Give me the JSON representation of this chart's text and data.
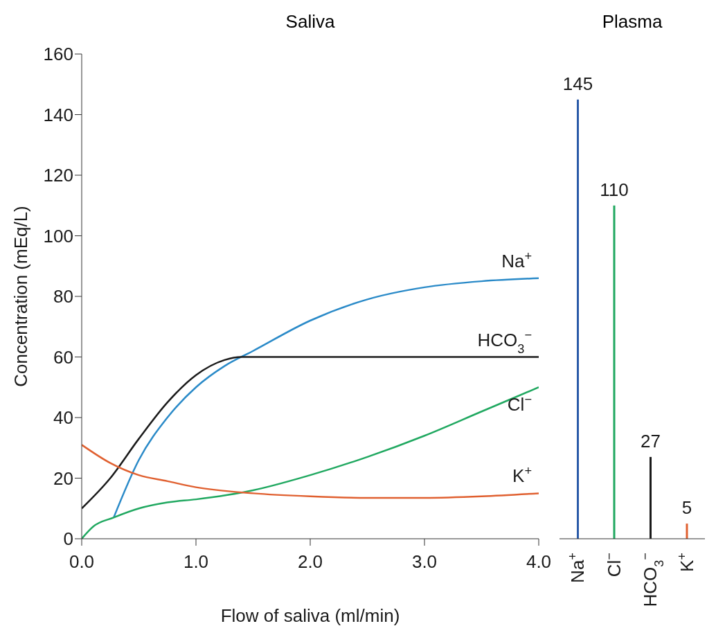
{
  "chart_data": [
    {
      "type": "line",
      "title": "Saliva",
      "xlabel": "Flow of saliva (ml/min)",
      "ylabel": "Concentration (mEq/L)",
      "xlim": [
        0,
        4
      ],
      "xticks": [
        {
          "value": 0,
          "label": "0.0"
        },
        {
          "value": 1,
          "label": "1.0"
        },
        {
          "value": 2,
          "label": "2.0"
        },
        {
          "value": 3,
          "label": "3.0"
        },
        {
          "value": 4,
          "label": "4.0"
        }
      ],
      "ylim": [
        0,
        160
      ],
      "yticks": [
        0,
        20,
        40,
        60,
        80,
        100,
        120,
        140,
        160
      ],
      "series": [
        {
          "name": "Na$^{+}$",
          "color": "#2a8ac8",
          "x": [
            0.28,
            0.5,
            0.75,
            1.0,
            1.25,
            1.5,
            2.0,
            2.5,
            3.0,
            3.5,
            4.0
          ],
          "values": [
            7,
            26,
            40,
            50,
            57,
            62,
            72,
            79,
            83,
            85,
            86
          ]
        },
        {
          "name": "HCO$_{3}$$^{−}$",
          "color": "#1a1a1a",
          "x": [
            0,
            0.25,
            0.5,
            0.75,
            1.0,
            1.25,
            1.4,
            2.0,
            3.0,
            4.0
          ],
          "values": [
            10,
            20,
            33,
            45,
            54,
            59,
            60,
            60,
            60,
            60
          ]
        },
        {
          "name": "Cl$^{−}$",
          "color": "#20a860",
          "x": [
            0,
            0.1,
            0.28,
            0.5,
            0.75,
            1.0,
            1.5,
            2.0,
            2.5,
            3.0,
            3.5,
            4.0
          ],
          "values": [
            0,
            4,
            7,
            10,
            12,
            13,
            16,
            21,
            27,
            34,
            42,
            50
          ]
        },
        {
          "name": "K$^{+}$",
          "color": "#e06030",
          "x": [
            0,
            0.25,
            0.5,
            0.75,
            1.0,
            1.5,
            2.0,
            2.5,
            3.0,
            3.5,
            4.0
          ],
          "values": [
            31,
            25,
            21,
            19,
            17,
            15,
            14,
            13.5,
            13.5,
            14,
            15
          ]
        }
      ]
    },
    {
      "type": "bar",
      "title": "Plasma",
      "categories": [
        "Na$^{+}$",
        "Cl$^{−}$",
        "HCO$_{3}$$^{−}$",
        "K$^{+}$"
      ],
      "values": [
        145,
        110,
        27,
        5
      ],
      "colors": [
        "#2a5aa8",
        "#20a860",
        "#1a1a1a",
        "#e06030"
      ],
      "ylim": [
        0,
        160
      ],
      "data_labels": true,
      "tick_labels": "x"
    }
  ]
}
